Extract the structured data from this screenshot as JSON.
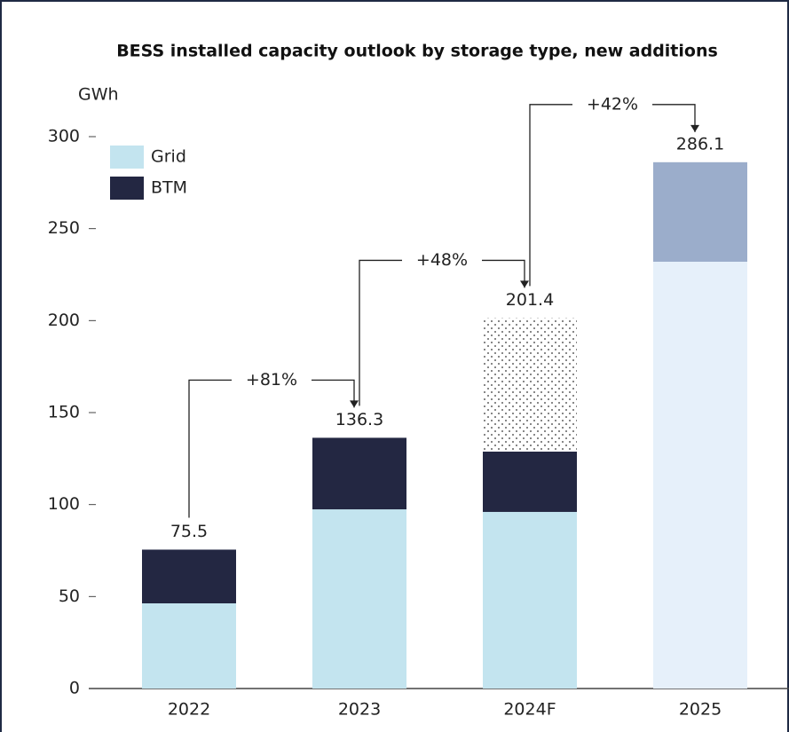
{
  "chart_data": {
    "type": "stacked_bar",
    "title": "BESS installed capacity outlook by storage type, new additions",
    "y_label": "GWh",
    "categories": [
      "2022",
      "2023",
      "2024F",
      "2025"
    ],
    "series": [
      {
        "name": "Grid",
        "color": "#c3e4ef",
        "colors": [
          "#c3e4ef",
          "#c3e4ef",
          "#c3e4ef",
          "#e6f0fa"
        ],
        "values": [
          46.3,
          97.4,
          96.0,
          232.0
        ]
      },
      {
        "name": "BTM",
        "color": "#232742",
        "colors": [
          "#232742",
          "#232742",
          "#232742",
          "#9badcb"
        ],
        "values": [
          29.2,
          38.9,
          32.8,
          54.1
        ]
      },
      {
        "pattern": "dots",
        "values": [
          null,
          null,
          72.6,
          null
        ]
      }
    ],
    "totals": [
      75.5,
      136.3,
      201.4,
      286.1
    ],
    "growth_labels": [
      "+81%",
      "+48%",
      "+42%"
    ],
    "ylim": [
      0,
      300
    ],
    "yticks": [
      0,
      50,
      100,
      150,
      200,
      250,
      300
    ],
    "legend": "top-left"
  }
}
